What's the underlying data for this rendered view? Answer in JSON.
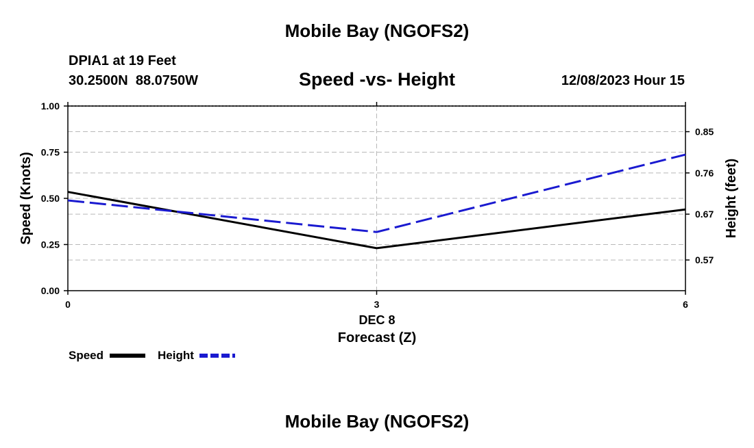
{
  "page_title": "Mobile Bay (NGOFS2)",
  "footer_title": "Mobile Bay (NGOFS2)",
  "station_line": "DPIA1 at 19 Feet",
  "coords_line": "30.2500N  88.0750W",
  "datetime_line": "12/08/2023 Hour 15",
  "chart_data": {
    "type": "line",
    "title": "Speed -vs- Height",
    "xlabel": "Forecast (Z)",
    "x_date_label": "DEC 8",
    "ylabel": "Speed (Knots)",
    "y2label": "Height (feet)",
    "xlim": [
      0,
      6
    ],
    "ylim": [
      0,
      1
    ],
    "y2lim": [
      0.503,
      0.906
    ],
    "x_ticks": [
      {
        "value": 0,
        "label": "0"
      },
      {
        "value": 3,
        "label": "3"
      },
      {
        "value": 6,
        "label": "6"
      }
    ],
    "y_ticks": [
      {
        "value": 0,
        "label": "0.00"
      },
      {
        "value": 0.25,
        "label": "0.25"
      },
      {
        "value": 0.5,
        "label": "0.50"
      },
      {
        "value": 0.75,
        "label": "0.75"
      },
      {
        "value": 1,
        "label": "1.00"
      }
    ],
    "y2_ticks": [
      {
        "value": 0.57,
        "label": "0.57"
      },
      {
        "value": 0.67,
        "label": "0.67"
      },
      {
        "value": 0.76,
        "label": "0.76"
      },
      {
        "value": 0.85,
        "label": "0.85"
      }
    ],
    "grid": true,
    "series": [
      {
        "name": "Speed",
        "axis": "left",
        "color": "#000000",
        "dash": "solid",
        "x": [
          0,
          3,
          6
        ],
        "values": [
          0.535,
          0.23,
          0.44
        ]
      },
      {
        "name": "Height",
        "axis": "right",
        "color": "#1a1ad0",
        "dash": "dashed",
        "x": [
          0,
          3,
          6
        ],
        "values": [
          0.7,
          0.631,
          0.8
        ]
      }
    ],
    "legend": [
      {
        "label": "Speed",
        "color": "#000000",
        "dash": "solid"
      },
      {
        "label": "Height",
        "color": "#1a1ad0",
        "dash": "dashed"
      }
    ]
  }
}
